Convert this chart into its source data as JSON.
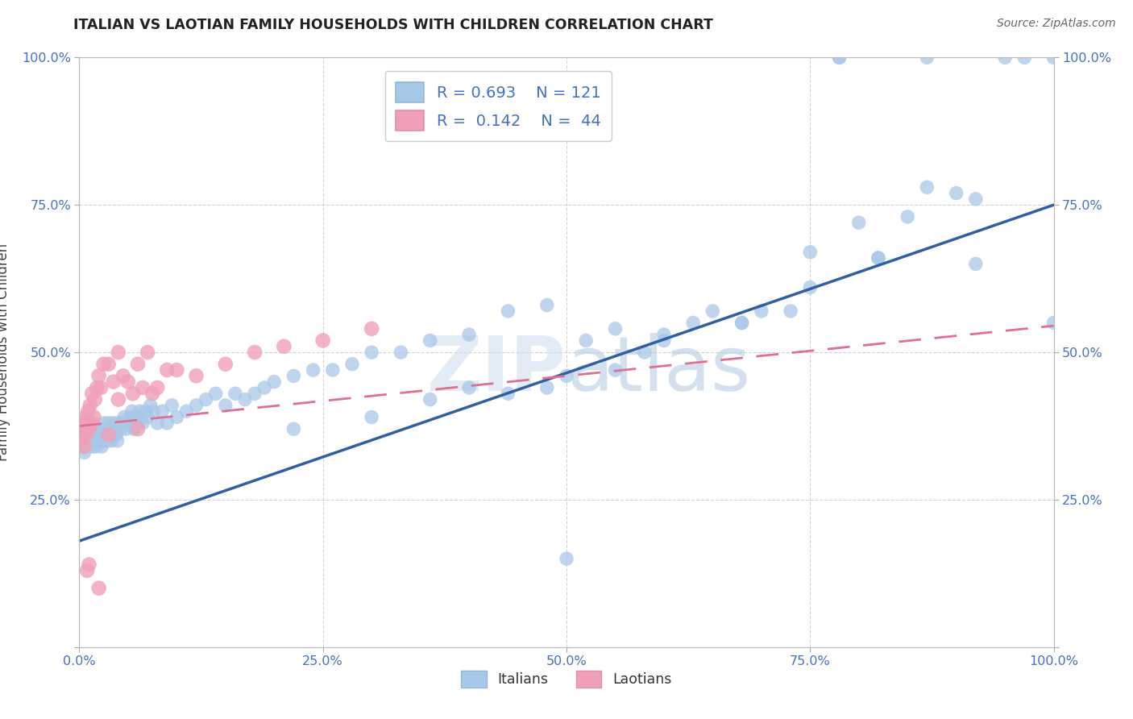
{
  "title": "ITALIAN VS LAOTIAN FAMILY HOUSEHOLDS WITH CHILDREN CORRELATION CHART",
  "source": "Source: ZipAtlas.com",
  "ylabel": "Family Households with Children",
  "xlim": [
    0,
    1
  ],
  "ylim": [
    0,
    1
  ],
  "x_ticks": [
    0,
    0.25,
    0.5,
    0.75,
    1.0
  ],
  "y_ticks": [
    0.0,
    0.25,
    0.5,
    0.75,
    1.0
  ],
  "x_tick_labels": [
    "0.0%",
    "25.0%",
    "50.0%",
    "75.0%",
    "100.0%"
  ],
  "y_tick_labels": [
    "",
    "25.0%",
    "50.0%",
    "75.0%",
    "100.0%"
  ],
  "italian_color": "#a8c8e8",
  "laotian_color": "#f0a0b8",
  "italian_line_color": "#3060a0",
  "laotian_line_color": "#e07090",
  "legend_italian_label": "R = 0.693    N = 121",
  "legend_laotian_label": "R =  0.142    N =  44",
  "legend_title_italian": "Italians",
  "legend_title_laotian": "Laotians",
  "watermark": "ZIPatlas",
  "italian_R": 0.693,
  "italian_N": 121,
  "laotian_R": 0.142,
  "laotian_N": 44,
  "background_color": "#ffffff",
  "grid_color": "#c8c8c8",
  "tick_color": "#4472c4",
  "it_line_x0": 0.0,
  "it_line_y0": 0.18,
  "it_line_x1": 1.0,
  "it_line_y1": 0.75,
  "la_line_x0": 0.0,
  "la_line_y0": 0.375,
  "la_line_x1": 1.0,
  "la_line_y1": 0.545,
  "italian_scatter_x": [
    0.0,
    0.001,
    0.002,
    0.003,
    0.004,
    0.005,
    0.005,
    0.006,
    0.007,
    0.008,
    0.009,
    0.01,
    0.011,
    0.012,
    0.013,
    0.014,
    0.015,
    0.016,
    0.016,
    0.017,
    0.018,
    0.019,
    0.02,
    0.021,
    0.022,
    0.023,
    0.024,
    0.025,
    0.026,
    0.027,
    0.028,
    0.029,
    0.03,
    0.031,
    0.032,
    0.033,
    0.034,
    0.035,
    0.036,
    0.037,
    0.038,
    0.039,
    0.04,
    0.042,
    0.044,
    0.046,
    0.048,
    0.05,
    0.052,
    0.054,
    0.056,
    0.058,
    0.06,
    0.062,
    0.065,
    0.068,
    0.07,
    0.073,
    0.076,
    0.08,
    0.085,
    0.09,
    0.095,
    0.1,
    0.11,
    0.12,
    0.13,
    0.14,
    0.15,
    0.16,
    0.17,
    0.18,
    0.19,
    0.2,
    0.22,
    0.24,
    0.26,
    0.28,
    0.3,
    0.33,
    0.36,
    0.4,
    0.44,
    0.48,
    0.5,
    0.5,
    0.52,
    0.55,
    0.58,
    0.6,
    0.63,
    0.65,
    0.68,
    0.7,
    0.73,
    0.75,
    0.78,
    0.8,
    0.82,
    0.85,
    0.87,
    0.9,
    0.92,
    0.95,
    0.97,
    1.0,
    1.0,
    0.87,
    0.92,
    0.78,
    0.82,
    0.75,
    0.68,
    0.6,
    0.55,
    0.48,
    0.44,
    0.4,
    0.36,
    0.3,
    0.22
  ],
  "italian_scatter_y": [
    0.38,
    0.37,
    0.36,
    0.35,
    0.34,
    0.33,
    0.38,
    0.36,
    0.35,
    0.37,
    0.36,
    0.35,
    0.37,
    0.36,
    0.34,
    0.38,
    0.36,
    0.37,
    0.35,
    0.34,
    0.36,
    0.35,
    0.37,
    0.36,
    0.35,
    0.34,
    0.36,
    0.35,
    0.38,
    0.36,
    0.37,
    0.35,
    0.38,
    0.37,
    0.36,
    0.35,
    0.37,
    0.38,
    0.36,
    0.37,
    0.36,
    0.35,
    0.38,
    0.37,
    0.38,
    0.39,
    0.37,
    0.38,
    0.39,
    0.4,
    0.37,
    0.39,
    0.38,
    0.4,
    0.38,
    0.4,
    0.39,
    0.41,
    0.4,
    0.38,
    0.4,
    0.38,
    0.41,
    0.39,
    0.4,
    0.41,
    0.42,
    0.43,
    0.41,
    0.43,
    0.42,
    0.43,
    0.44,
    0.45,
    0.46,
    0.47,
    0.47,
    0.48,
    0.5,
    0.5,
    0.52,
    0.53,
    0.57,
    0.58,
    0.46,
    0.15,
    0.52,
    0.54,
    0.5,
    0.52,
    0.55,
    0.57,
    0.55,
    0.57,
    0.57,
    0.67,
    1.0,
    0.72,
    0.66,
    0.73,
    0.78,
    0.77,
    0.76,
    1.0,
    1.0,
    1.0,
    0.55,
    1.0,
    0.65,
    1.0,
    0.66,
    0.61,
    0.55,
    0.53,
    0.47,
    0.44,
    0.43,
    0.44,
    0.42,
    0.39,
    0.37
  ],
  "laotian_scatter_x": [
    0.0,
    0.001,
    0.002,
    0.003,
    0.005,
    0.006,
    0.007,
    0.008,
    0.009,
    0.01,
    0.011,
    0.012,
    0.013,
    0.015,
    0.016,
    0.018,
    0.02,
    0.022,
    0.025,
    0.03,
    0.035,
    0.04,
    0.045,
    0.05,
    0.055,
    0.06,
    0.065,
    0.07,
    0.075,
    0.08,
    0.09,
    0.1,
    0.12,
    0.15,
    0.18,
    0.21,
    0.25,
    0.3,
    0.06,
    0.03,
    0.01,
    0.008,
    0.02,
    0.04
  ],
  "laotian_scatter_y": [
    0.38,
    0.35,
    0.37,
    0.36,
    0.34,
    0.39,
    0.36,
    0.38,
    0.4,
    0.37,
    0.41,
    0.38,
    0.43,
    0.39,
    0.42,
    0.44,
    0.46,
    0.44,
    0.48,
    0.48,
    0.45,
    0.5,
    0.46,
    0.45,
    0.43,
    0.48,
    0.44,
    0.5,
    0.43,
    0.44,
    0.47,
    0.47,
    0.46,
    0.48,
    0.5,
    0.51,
    0.52,
    0.54,
    0.37,
    0.36,
    0.14,
    0.13,
    0.1,
    0.42
  ]
}
